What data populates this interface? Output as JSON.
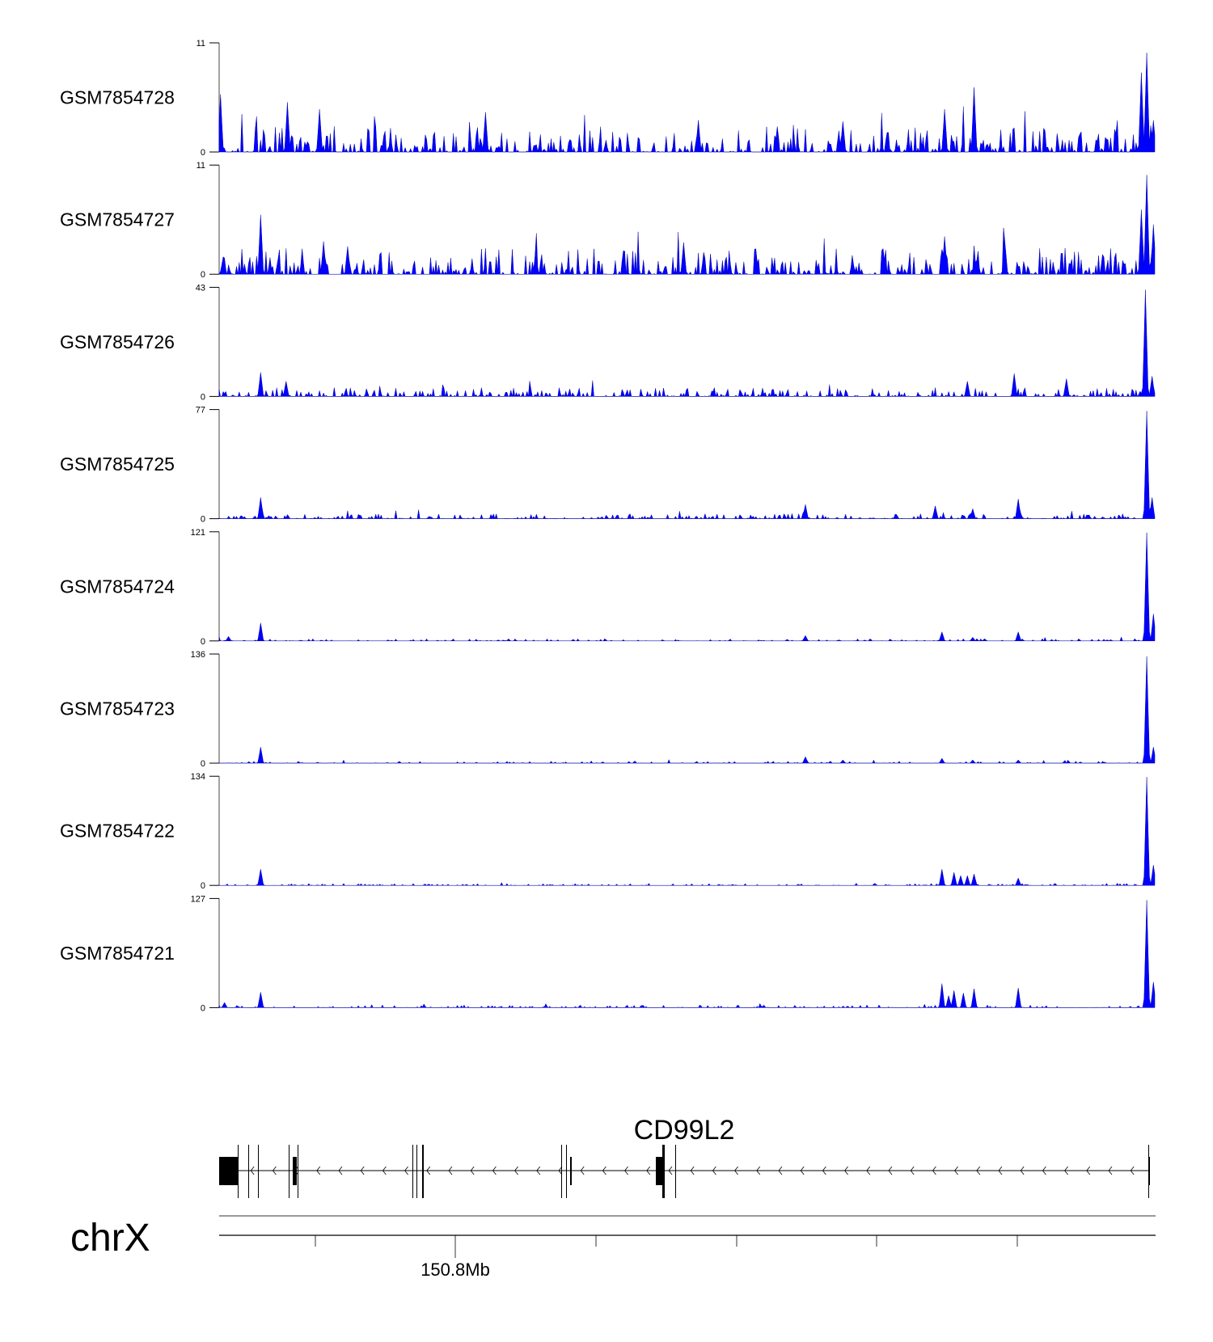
{
  "chart_data": {
    "type": "area",
    "title": "",
    "color": "#0000ff",
    "chromosome": "chrX",
    "x_axis": {
      "major_tick_label": "150.8Mb",
      "minor_ticks": 6,
      "major_tick_index": 1
    },
    "gene": {
      "name": "CD99L2",
      "strand": "-"
    },
    "tracks": [
      {
        "name": "GSM7854728",
        "ylim": [
          0,
          11
        ],
        "noise_max": 2.6,
        "noise_density": 0.55,
        "seed": 11,
        "peaks": [
          [
            0.002,
            5.8
          ],
          [
            0.073,
            5.0
          ],
          [
            0.108,
            4.3
          ],
          [
            0.285,
            4.0
          ],
          [
            0.512,
            3.2
          ],
          [
            0.667,
            3.1
          ],
          [
            0.775,
            4.3
          ],
          [
            0.807,
            6.5
          ],
          [
            0.985,
            8.0
          ],
          [
            0.992,
            10.0
          ],
          [
            0.998,
            3.2
          ]
        ]
      },
      {
        "name": "GSM7854727",
        "ylim": [
          0,
          11
        ],
        "noise_max": 2.6,
        "noise_density": 0.6,
        "seed": 23,
        "peaks": [
          [
            0.045,
            6.0
          ],
          [
            0.112,
            3.3
          ],
          [
            0.138,
            2.8
          ],
          [
            0.497,
            3.2
          ],
          [
            0.775,
            3.8
          ],
          [
            0.84,
            3.3
          ],
          [
            0.985,
            6.5
          ],
          [
            0.992,
            10.0
          ],
          [
            0.998,
            5.0
          ]
        ]
      },
      {
        "name": "GSM7854726",
        "ylim": [
          0,
          43
        ],
        "noise_max": 3.5,
        "noise_density": 0.5,
        "seed": 37,
        "peaks": [
          [
            0.045,
            9.5
          ],
          [
            0.072,
            6.0
          ],
          [
            0.8,
            6.0
          ],
          [
            0.85,
            9.0
          ],
          [
            0.905,
            7.0
          ],
          [
            0.99,
            42.0
          ],
          [
            0.997,
            8.0
          ]
        ]
      },
      {
        "name": "GSM7854725",
        "ylim": [
          0,
          77
        ],
        "noise_max": 3.5,
        "noise_density": 0.45,
        "seed": 41,
        "peaks": [
          [
            0.045,
            15.0
          ],
          [
            0.626,
            10.0
          ],
          [
            0.765,
            9.0
          ],
          [
            0.805,
            7.0
          ],
          [
            0.854,
            14.0
          ],
          [
            0.991,
            76.0
          ],
          [
            0.997,
            15.0
          ]
        ]
      },
      {
        "name": "GSM7854724",
        "ylim": [
          0,
          121
        ],
        "noise_max": 2.5,
        "noise_density": 0.35,
        "seed": 53,
        "peaks": [
          [
            0.01,
            5.0
          ],
          [
            0.045,
            20.0
          ],
          [
            0.626,
            6.0
          ],
          [
            0.772,
            10.0
          ],
          [
            0.806,
            4.0
          ],
          [
            0.854,
            10.0
          ],
          [
            0.991,
            120.0
          ],
          [
            0.998,
            30.0
          ]
        ]
      },
      {
        "name": "GSM7854723",
        "ylim": [
          0,
          136
        ],
        "noise_max": 2.5,
        "noise_density": 0.3,
        "seed": 61,
        "peaks": [
          [
            0.045,
            20.0
          ],
          [
            0.626,
            8.0
          ],
          [
            0.667,
            4.0
          ],
          [
            0.772,
            6.0
          ],
          [
            0.806,
            4.0
          ],
          [
            0.854,
            4.0
          ],
          [
            0.991,
            133.0
          ],
          [
            0.998,
            20.0
          ]
        ]
      },
      {
        "name": "GSM7854722",
        "ylim": [
          0,
          134
        ],
        "noise_max": 2.5,
        "noise_density": 0.35,
        "seed": 71,
        "peaks": [
          [
            0.045,
            20.0
          ],
          [
            0.772,
            20.0
          ],
          [
            0.785,
            16.0
          ],
          [
            0.792,
            12.0
          ],
          [
            0.8,
            12.0
          ],
          [
            0.807,
            14.0
          ],
          [
            0.854,
            9.0
          ],
          [
            0.991,
            133.0
          ],
          [
            0.998,
            25.0
          ]
        ]
      },
      {
        "name": "GSM7854721",
        "ylim": [
          0,
          127
        ],
        "noise_max": 3.0,
        "noise_density": 0.35,
        "seed": 83,
        "peaks": [
          [
            0.006,
            6.0
          ],
          [
            0.045,
            18.0
          ],
          [
            0.772,
            28.0
          ],
          [
            0.78,
            14.0
          ],
          [
            0.786,
            20.0
          ],
          [
            0.795,
            17.0
          ],
          [
            0.807,
            22.0
          ],
          [
            0.854,
            23.0
          ],
          [
            0.991,
            125.0
          ],
          [
            0.998,
            30.0
          ]
        ]
      }
    ]
  }
}
